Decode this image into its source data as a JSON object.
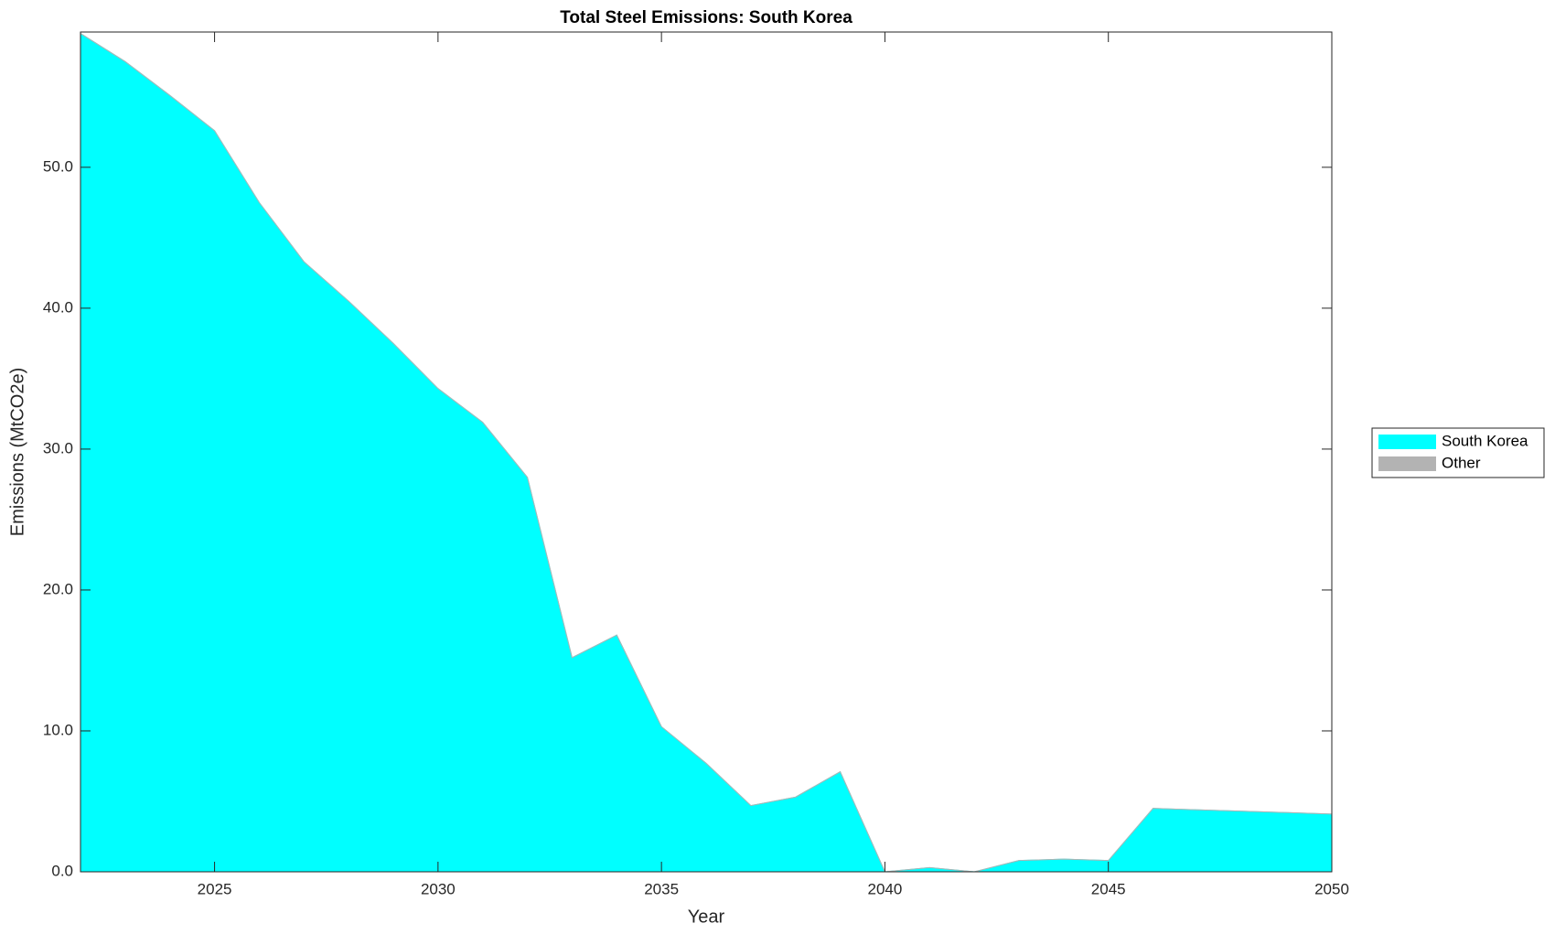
{
  "chart_data": {
    "type": "stacked-area",
    "title": "Total Steel Emissions: South Korea",
    "x_label": "Year",
    "y_label": "Emissions (MtCO2e)",
    "x": [
      2022,
      2023,
      2024,
      2025,
      2026,
      2027,
      2028,
      2029,
      2030,
      2031,
      2032,
      2033,
      2034,
      2035,
      2036,
      2037,
      2038,
      2039,
      2040,
      2041,
      2042,
      2043,
      2044,
      2045,
      2046,
      2047,
      2048,
      2049,
      2050
    ],
    "series": [
      {
        "name": "South Korea",
        "color": "#00ffff",
        "values": [
          59.5,
          57.5,
          55.1,
          52.6,
          47.5,
          43.3,
          40.5,
          37.5,
          34.3,
          31.9,
          28.0,
          15.2,
          16.8,
          10.3,
          7.7,
          4.7,
          5.3,
          7.1,
          0.0,
          0.3,
          0.0,
          0.8,
          0.9,
          0.8,
          4.5,
          4.4,
          4.3,
          4.2,
          4.1
        ]
      },
      {
        "name": "Other",
        "color": "#b3b3b3",
        "values": [
          0,
          0,
          0,
          0,
          0,
          0,
          0,
          0,
          0,
          0,
          0,
          0,
          0,
          0,
          0,
          0,
          0,
          0,
          0,
          0,
          0,
          0,
          0,
          0,
          0,
          0,
          0,
          0,
          0
        ]
      }
    ],
    "xlim": [
      2022,
      2050
    ],
    "xticks": [
      2025,
      2030,
      2035,
      2040,
      2045,
      2050
    ],
    "ylim": [
      0,
      59.6
    ],
    "yticks": [
      {
        "value": 0,
        "label": "0.0"
      },
      {
        "value": 10,
        "label": "10.0"
      },
      {
        "value": 20,
        "label": "20.0"
      },
      {
        "value": 30,
        "label": "30.0"
      },
      {
        "value": 40,
        "label": "40.0"
      },
      {
        "value": 50,
        "label": "50.0"
      }
    ],
    "legend": "right"
  }
}
